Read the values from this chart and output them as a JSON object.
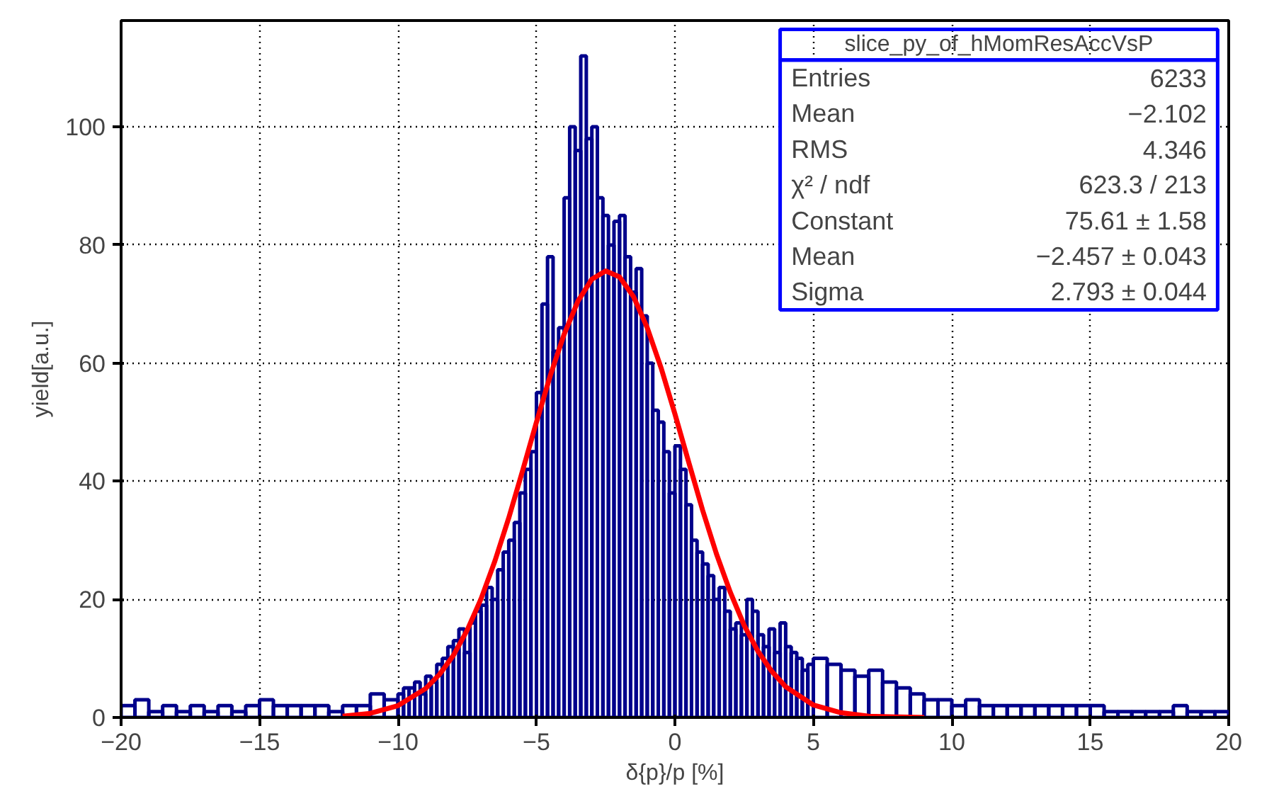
{
  "chart_data": {
    "type": "histogram",
    "xlabel": "δ{p}/p [%]",
    "ylabel": "yield[a.u.]",
    "xlim": [
      -20,
      20
    ],
    "ylim": [
      0,
      118
    ],
    "xticks": [
      -20,
      -15,
      -10,
      -5,
      0,
      5,
      10,
      15,
      20
    ],
    "yticks": [
      0,
      20,
      40,
      60,
      80,
      100
    ],
    "grid": true,
    "series": [
      {
        "color": "#00008b",
        "bins": [
          -20,
          -19.5,
          -19,
          -18.5,
          -18,
          -17.5,
          -17,
          -16.5,
          -16,
          -15.5,
          -15,
          -14.5,
          -14,
          -13.5,
          -13,
          -12.5,
          -12,
          -11.5,
          -11,
          -10.5,
          -10,
          -9.8,
          -9.6,
          -9.4,
          -9.2,
          -9,
          -8.8,
          -8.6,
          -8.4,
          -8.2,
          -8,
          -7.8,
          -7.6,
          -7.4,
          -7.2,
          -7,
          -6.8,
          -6.6,
          -6.4,
          -6.2,
          -6,
          -5.8,
          -5.6,
          -5.4,
          -5.2,
          -5,
          -4.8,
          -4.6,
          -4.4,
          -4.2,
          -4,
          -3.8,
          -3.6,
          -3.4,
          -3.2,
          -3,
          -2.8,
          -2.6,
          -2.4,
          -2.2,
          -2,
          -1.8,
          -1.6,
          -1.4,
          -1.2,
          -1,
          -0.8,
          -0.6,
          -0.4,
          -0.2,
          0,
          0.2,
          0.4,
          0.6,
          0.8,
          1,
          1.2,
          1.4,
          1.6,
          1.8,
          2,
          2.2,
          2.4,
          2.6,
          2.8,
          3,
          3.2,
          3.4,
          3.6,
          3.8,
          4,
          4.2,
          4.4,
          4.6,
          4.8,
          5,
          5.5,
          6,
          6.5,
          7,
          7.5,
          8,
          8.5,
          9,
          9.5,
          10,
          10.5,
          11,
          11.5,
          12,
          12.5,
          13,
          13.5,
          14,
          14.5,
          15,
          15.5,
          16,
          16.5,
          17,
          17.5,
          18,
          18.5,
          19,
          19.5,
          20
        ],
        "values": [
          2,
          3,
          1,
          2,
          1,
          2,
          1,
          2,
          1,
          2,
          3,
          2,
          2,
          2,
          2,
          1,
          2,
          2,
          4,
          3,
          4,
          5,
          5,
          6,
          4,
          7,
          6,
          9,
          10,
          12,
          13,
          15,
          11,
          16,
          18,
          19,
          22,
          20,
          25,
          28,
          30,
          33,
          38,
          42,
          45,
          55,
          70,
          78,
          62,
          66,
          88,
          100,
          96,
          112,
          98,
          100,
          88,
          85,
          80,
          84,
          85,
          78,
          72,
          76,
          68,
          60,
          52,
          50,
          45,
          38,
          46,
          42,
          36,
          30,
          28,
          26,
          24,
          20,
          22,
          18,
          15,
          16,
          14,
          20,
          18,
          14,
          12,
          15,
          11,
          16,
          12,
          11,
          10,
          8,
          9,
          10,
          9,
          8,
          7,
          8,
          6,
          5,
          4,
          3,
          3,
          2,
          3,
          2,
          2,
          2,
          2,
          2,
          2,
          2,
          2,
          2,
          1,
          1,
          1,
          1,
          1,
          2,
          1,
          1,
          1
        ]
      },
      {
        "type": "line",
        "color": "#ff0000",
        "line_style": "solid",
        "x": [
          -12,
          -11,
          -10,
          -9,
          -8.5,
          -8,
          -7.5,
          -7,
          -6.5,
          -6,
          -5.5,
          -5,
          -4.5,
          -4,
          -3.5,
          -3,
          -2.5,
          -2,
          -1.5,
          -1,
          -0.5,
          0,
          0.5,
          1,
          1.5,
          2,
          2.5,
          3,
          3.5,
          4,
          5,
          6,
          7,
          8,
          9
        ],
        "values": [
          0.2,
          0.7,
          2,
          4.9,
          7.3,
          10.5,
          14.8,
          20.1,
          26.5,
          33.8,
          41.8,
          50,
          57.9,
          64.9,
          70.5,
          74.2,
          75.6,
          74.6,
          71.3,
          66,
          59.2,
          51.4,
          43.2,
          35.1,
          27.7,
          21.2,
          15.6,
          11.2,
          7.8,
          5.2,
          2.1,
          0.8,
          0.2,
          0.1,
          0
        ]
      }
    ],
    "annotations": [
      "slice_py_of_hMomResAccVsP",
      "Entries",
      "6233",
      "Mean",
      "−2.102",
      "RMS",
      "4.346",
      "χ² / ndf",
      "623.3 / 213",
      "Constant",
      "75.61 ± 1.58",
      "Mean",
      "−2.457 ± 0.043",
      "Sigma",
      "2.793 ± 0.044"
    ]
  }
}
